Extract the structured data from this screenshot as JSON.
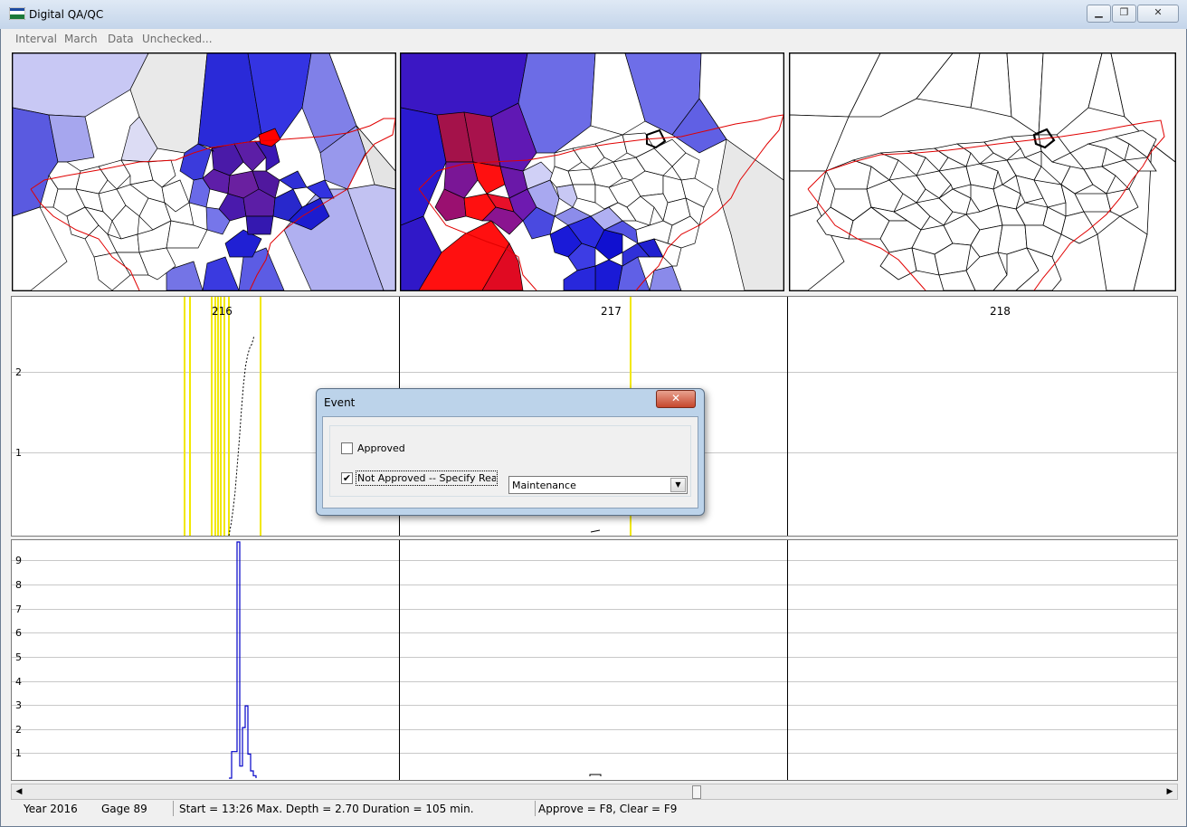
{
  "window": {
    "title": "Digital QA/QC",
    "controls": {
      "minimize": "▁",
      "restore": "❐",
      "close": "✕"
    }
  },
  "menu": [
    "Interval",
    "March",
    "Data",
    "Unchecked..."
  ],
  "charts": {
    "top": {
      "columns": [
        "216",
        "217",
        "218"
      ],
      "y_ticks": [
        "2",
        "1"
      ]
    },
    "bottom": {
      "y_ticks": [
        "9",
        "8",
        "7",
        "6",
        "5",
        "4",
        "3",
        "2",
        "1"
      ]
    }
  },
  "chart_data": [
    {
      "type": "line",
      "title": "",
      "series": [
        {
          "name": "",
          "x": [
            0,
            1,
            2,
            3,
            4,
            5,
            6,
            7,
            8,
            9,
            10,
            11,
            12
          ],
          "y": [
            0,
            0.15,
            0.35,
            0.6,
            0.95,
            1.3,
            1.7,
            2.05,
            2.3,
            2.45,
            2.55,
            2.6,
            2.7
          ]
        }
      ],
      "ylim": [
        0,
        2.9
      ]
    },
    {
      "type": "line",
      "title": "",
      "series": [
        {
          "name": "",
          "x": [
            0,
            1,
            2,
            3,
            4,
            5,
            6,
            7,
            8,
            9,
            10
          ],
          "y": [
            0,
            1.1,
            1.1,
            9.8,
            0.5,
            2.1,
            3.0,
            1.0,
            0.3,
            0.1,
            0
          ]
        }
      ],
      "ylim": [
        0,
        9.8
      ]
    }
  ],
  "status": {
    "year": "Year  2016",
    "gage": "Gage  89",
    "event": "Start = 13:26   Max. Depth = 2.70   Duration = 105 min.",
    "hint": "Approve = F8, Clear = F9"
  },
  "dialog": {
    "title": "Event",
    "close": "✕",
    "approved_label": "Approved",
    "approved_checked": false,
    "not_approved_label": "Not Approved -- Specify Reason",
    "not_approved_checked": true,
    "reason_value": "Maintenance"
  }
}
